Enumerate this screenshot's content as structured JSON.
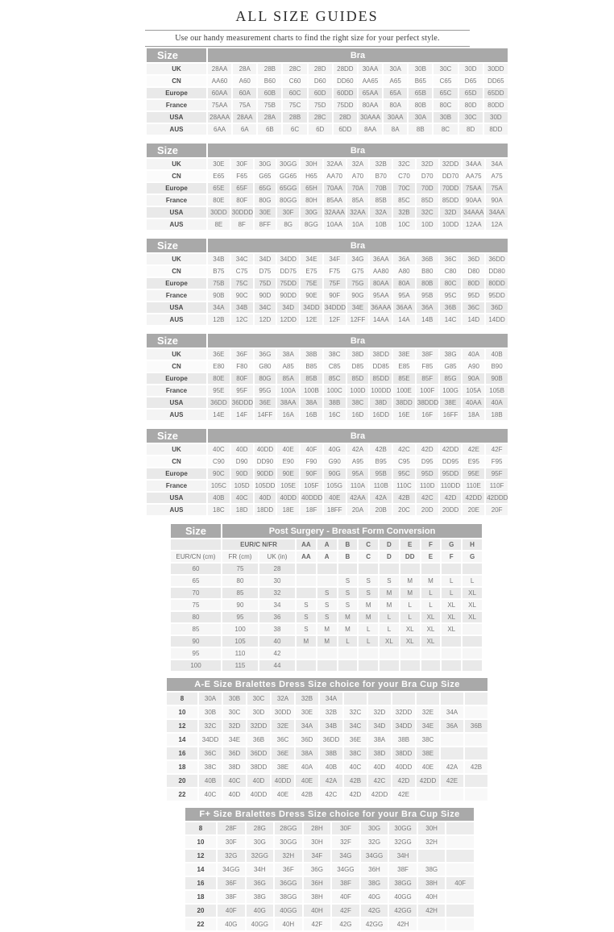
{
  "page": {
    "title": "ALL SIZE GUIDES",
    "subtitle": "Use our handy measurement charts to find the right size for your perfect style."
  },
  "bra_tables": [
    {
      "size_label": "Size",
      "bra_label": "Bra",
      "rows": [
        {
          "label": "UK",
          "values": [
            "28AA",
            "28A",
            "28B",
            "28C",
            "28D",
            "28DD",
            "30AA",
            "30A",
            "30B",
            "30C",
            "30D",
            "30DD"
          ]
        },
        {
          "label": "CN",
          "values": [
            "AA60",
            "A60",
            "B60",
            "C60",
            "D60",
            "DD60",
            "AA65",
            "A65",
            "B65",
            "C65",
            "D65",
            "DD65"
          ]
        },
        {
          "label": "Europe",
          "values": [
            "60AA",
            "60A",
            "60B",
            "60C",
            "60D",
            "60DD",
            "65AA",
            "65A",
            "65B",
            "65C",
            "65D",
            "65DD"
          ]
        },
        {
          "label": "France",
          "values": [
            "75AA",
            "75A",
            "75B",
            "75C",
            "75D",
            "75DD",
            "80AA",
            "80A",
            "80B",
            "80C",
            "80D",
            "80DD"
          ]
        },
        {
          "label": "USA",
          "values": [
            "28AAA",
            "28AA",
            "28A",
            "28B",
            "28C",
            "28D",
            "30AAA",
            "30AA",
            "30A",
            "30B",
            "30C",
            "30D"
          ]
        },
        {
          "label": "AUS",
          "values": [
            "6AA",
            "6A",
            "6B",
            "6C",
            "6D",
            "6DD",
            "8AA",
            "8A",
            "8B",
            "8C",
            "8D",
            "8DD"
          ]
        }
      ]
    },
    {
      "size_label": "Size",
      "bra_label": "Bra",
      "rows": [
        {
          "label": "UK",
          "values": [
            "30E",
            "30F",
            "30G",
            "30GG",
            "30H",
            "32AA",
            "32A",
            "32B",
            "32C",
            "32D",
            "32DD",
            "34AA",
            "34A"
          ]
        },
        {
          "label": "CN",
          "values": [
            "E65",
            "F65",
            "G65",
            "GG65",
            "H65",
            "AA70",
            "A70",
            "B70",
            "C70",
            "D70",
            "DD70",
            "AA75",
            "A75"
          ]
        },
        {
          "label": "Europe",
          "values": [
            "65E",
            "65F",
            "65G",
            "65GG",
            "65H",
            "70AA",
            "70A",
            "70B",
            "70C",
            "70D",
            "70DD",
            "75AA",
            "75A"
          ]
        },
        {
          "label": "France",
          "values": [
            "80E",
            "80F",
            "80G",
            "80GG",
            "80H",
            "85AA",
            "85A",
            "85B",
            "85C",
            "85D",
            "85DD",
            "90AA",
            "90A"
          ]
        },
        {
          "label": "USA",
          "values": [
            "30DD",
            "30DDD",
            "30E",
            "30F",
            "30G",
            "32AAA",
            "32AA",
            "32A",
            "32B",
            "32C",
            "32D",
            "34AAA",
            "34AA"
          ]
        },
        {
          "label": "AUS",
          "values": [
            "8E",
            "8F",
            "8FF",
            "8G",
            "8GG",
            "10AA",
            "10A",
            "10B",
            "10C",
            "10D",
            "10DD",
            "12AA",
            "12A"
          ]
        }
      ]
    },
    {
      "size_label": "Size",
      "bra_label": "Bra",
      "rows": [
        {
          "label": "UK",
          "values": [
            "34B",
            "34C",
            "34D",
            "34DD",
            "34E",
            "34F",
            "34G",
            "36AA",
            "36A",
            "36B",
            "36C",
            "36D",
            "36DD"
          ]
        },
        {
          "label": "CN",
          "values": [
            "B75",
            "C75",
            "D75",
            "DD75",
            "E75",
            "F75",
            "G75",
            "AA80",
            "A80",
            "B80",
            "C80",
            "D80",
            "DD80"
          ]
        },
        {
          "label": "Europe",
          "values": [
            "75B",
            "75C",
            "75D",
            "75DD",
            "75E",
            "75F",
            "75G",
            "80AA",
            "80A",
            "80B",
            "80C",
            "80D",
            "80DD"
          ]
        },
        {
          "label": "France",
          "values": [
            "90B",
            "90C",
            "90D",
            "90DD",
            "90E",
            "90F",
            "90G",
            "95AA",
            "95A",
            "95B",
            "95C",
            "95D",
            "95DD"
          ]
        },
        {
          "label": "USA",
          "values": [
            "34A",
            "34B",
            "34C",
            "34D",
            "34DD",
            "34DDD",
            "34E",
            "36AAA",
            "36AA",
            "36A",
            "36B",
            "36C",
            "36D"
          ]
        },
        {
          "label": "AUS",
          "values": [
            "12B",
            "12C",
            "12D",
            "12DD",
            "12E",
            "12F",
            "12FF",
            "14AA",
            "14A",
            "14B",
            "14C",
            "14D",
            "14DD"
          ]
        }
      ]
    },
    {
      "size_label": "Size",
      "bra_label": "Bra",
      "rows": [
        {
          "label": "UK",
          "values": [
            "36E",
            "36F",
            "36G",
            "38A",
            "38B",
            "38C",
            "38D",
            "38DD",
            "38E",
            "38F",
            "38G",
            "40A",
            "40B"
          ]
        },
        {
          "label": "CN",
          "values": [
            "E80",
            "F80",
            "G80",
            "A85",
            "B85",
            "C85",
            "D85",
            "DD85",
            "E85",
            "F85",
            "G85",
            "A90",
            "B90"
          ]
        },
        {
          "label": "Europe",
          "values": [
            "80E",
            "80F",
            "80G",
            "85A",
            "85B",
            "85C",
            "85D",
            "85DD",
            "85E",
            "85F",
            "85G",
            "90A",
            "90B"
          ]
        },
        {
          "label": "France",
          "values": [
            "95E",
            "95F",
            "95G",
            "100A",
            "100B",
            "100C",
            "100D",
            "100DD",
            "100E",
            "100F",
            "100G",
            "105A",
            "105B"
          ]
        },
        {
          "label": "USA",
          "values": [
            "36DD",
            "36DDD",
            "36E",
            "38AA",
            "38A",
            "38B",
            "38C",
            "38D",
            "38DD",
            "38DDD",
            "38E",
            "40AA",
            "40A"
          ]
        },
        {
          "label": "AUS",
          "values": [
            "14E",
            "14F",
            "14FF",
            "16A",
            "16B",
            "16C",
            "16D",
            "16DD",
            "16E",
            "16F",
            "16FF",
            "18A",
            "18B"
          ]
        }
      ]
    },
    {
      "size_label": "Size",
      "bra_label": "Bra",
      "rows": [
        {
          "label": "UK",
          "values": [
            "40C",
            "40D",
            "40DD",
            "40E",
            "40F",
            "40G",
            "42A",
            "42B",
            "42C",
            "42D",
            "42DD",
            "42E",
            "42F"
          ]
        },
        {
          "label": "CN",
          "values": [
            "C90",
            "D90",
            "DD90",
            "E90",
            "F90",
            "G90",
            "A95",
            "B95",
            "C95",
            "D95",
            "DD95",
            "E95",
            "F95"
          ]
        },
        {
          "label": "Europe",
          "values": [
            "90C",
            "90D",
            "90DD",
            "90E",
            "90F",
            "90G",
            "95A",
            "95B",
            "95C",
            "95D",
            "95DD",
            "95E",
            "95F"
          ]
        },
        {
          "label": "France",
          "values": [
            "105C",
            "105D",
            "105DD",
            "105E",
            "105F",
            "105G",
            "110A",
            "110B",
            "110C",
            "110D",
            "110DD",
            "110E",
            "110F"
          ]
        },
        {
          "label": "USA",
          "values": [
            "40B",
            "40C",
            "40D",
            "40DD",
            "40DDD",
            "40E",
            "42AA",
            "42A",
            "42B",
            "42C",
            "42D",
            "42DD",
            "42DDD"
          ]
        },
        {
          "label": "AUS",
          "values": [
            "18C",
            "18D",
            "18DD",
            "18E",
            "18F",
            "18FF",
            "20A",
            "20B",
            "20C",
            "20D",
            "20DD",
            "20E",
            "20F"
          ]
        }
      ]
    }
  ],
  "post_surgery": {
    "size_label": "Size",
    "title": "Post Surgery - Breast Form Conversion",
    "group_label": "EUR/C N/FR",
    "cups_top": [
      "AA",
      "A",
      "B",
      "C",
      "D",
      "E",
      "F",
      "G",
      "H"
    ],
    "unit_labels": [
      "EUR/CN (cm)",
      "FR (cm)",
      "UK (in)"
    ],
    "cups_bottom": [
      "AA",
      "A",
      "B",
      "C",
      "D",
      "DD",
      "E",
      "F",
      "G"
    ],
    "rows": [
      {
        "eur_cn": "60",
        "fr": "75",
        "uk": "28",
        "values": [
          "",
          "",
          "",
          "",
          "",
          "",
          "",
          "",
          ""
        ]
      },
      {
        "eur_cn": "65",
        "fr": "80",
        "uk": "30",
        "values": [
          "",
          "",
          "S",
          "S",
          "S",
          "M",
          "M",
          "L",
          "L"
        ]
      },
      {
        "eur_cn": "70",
        "fr": "85",
        "uk": "32",
        "values": [
          "",
          "S",
          "S",
          "S",
          "M",
          "M",
          "L",
          "L",
          "XL"
        ]
      },
      {
        "eur_cn": "75",
        "fr": "90",
        "uk": "34",
        "values": [
          "S",
          "S",
          "S",
          "M",
          "M",
          "L",
          "L",
          "XL",
          "XL"
        ]
      },
      {
        "eur_cn": "80",
        "fr": "95",
        "uk": "36",
        "values": [
          "S",
          "S",
          "M",
          "M",
          "L",
          "L",
          "XL",
          "XL",
          "XL"
        ]
      },
      {
        "eur_cn": "85",
        "fr": "100",
        "uk": "38",
        "values": [
          "S",
          "M",
          "M",
          "L",
          "L",
          "XL",
          "XL",
          "XL",
          ""
        ]
      },
      {
        "eur_cn": "90",
        "fr": "105",
        "uk": "40",
        "values": [
          "M",
          "M",
          "L",
          "L",
          "XL",
          "XL",
          "XL",
          "",
          ""
        ]
      },
      {
        "eur_cn": "95",
        "fr": "110",
        "uk": "42",
        "values": [
          "",
          "",
          "",
          "",
          "",
          "",
          "",
          "",
          ""
        ]
      },
      {
        "eur_cn": "100",
        "fr": "115",
        "uk": "44",
        "values": [
          "",
          "",
          "",
          "",
          "",
          "",
          "",
          "",
          ""
        ]
      }
    ]
  },
  "bralettes_ae": {
    "title": "A-E Size Bralettes Dress Size choice for your Bra Cup Size",
    "column_count": 12,
    "rows": [
      {
        "dress": "8",
        "values": [
          "30A",
          "30B",
          "30C",
          "32A",
          "32B",
          "34A"
        ]
      },
      {
        "dress": "10",
        "values": [
          "30B",
          "30C",
          "30D",
          "30DD",
          "30E",
          "32B",
          "32C",
          "32D",
          "32DD",
          "32E",
          "34A"
        ]
      },
      {
        "dress": "12",
        "values": [
          "32C",
          "32D",
          "32DD",
          "32E",
          "34A",
          "34B",
          "34C",
          "34D",
          "34DD",
          "34E",
          "36A",
          "36B"
        ]
      },
      {
        "dress": "14",
        "values": [
          "34DD",
          "34E",
          "36B",
          "36C",
          "36D",
          "36DD",
          "36E",
          "38A",
          "38B",
          "38C"
        ]
      },
      {
        "dress": "16",
        "values": [
          "36C",
          "36D",
          "36DD",
          "36E",
          "38A",
          "38B",
          "38C",
          "38D",
          "38DD",
          "38E"
        ]
      },
      {
        "dress": "18",
        "values": [
          "38C",
          "38D",
          "38DD",
          "38E",
          "40A",
          "40B",
          "40C",
          "40D",
          "40DD",
          "40E",
          "42A",
          "42B"
        ]
      },
      {
        "dress": "20",
        "values": [
          "40B",
          "40C",
          "40D",
          "40DD",
          "40E",
          "42A",
          "42B",
          "42C",
          "42D",
          "42DD",
          "42E"
        ]
      },
      {
        "dress": "22",
        "values": [
          "40C",
          "40D",
          "40DD",
          "40E",
          "42B",
          "42C",
          "42D",
          "42DD",
          "42E"
        ]
      }
    ]
  },
  "bralettes_fplus": {
    "title": "F+ Size Bralettes Dress Size choice for your Bra Cup Size",
    "column_count": 9,
    "rows": [
      {
        "dress": "8",
        "values": [
          "28F",
          "28G",
          "28GG",
          "28H",
          "30F",
          "30G",
          "30GG",
          "30H"
        ]
      },
      {
        "dress": "10",
        "values": [
          "30F",
          "30G",
          "30GG",
          "30H",
          "32F",
          "32G",
          "32GG",
          "32H"
        ]
      },
      {
        "dress": "12",
        "values": [
          "32G",
          "32GG",
          "32H",
          "34F",
          "34G",
          "34GG",
          "34H"
        ]
      },
      {
        "dress": "14",
        "values": [
          "34GG",
          "34H",
          "36F",
          "36G",
          "34GG",
          "36H",
          "38F",
          "38G"
        ]
      },
      {
        "dress": "16",
        "values": [
          "36F",
          "36G",
          "36GG",
          "36H",
          "38F",
          "38G",
          "38GG",
          "38H",
          "40F"
        ]
      },
      {
        "dress": "18",
        "values": [
          "38F",
          "38G",
          "38GG",
          "38H",
          "40F",
          "40G",
          "40GG",
          "40H"
        ]
      },
      {
        "dress": "20",
        "values": [
          "40F",
          "40G",
          "40GG",
          "40H",
          "42F",
          "42G",
          "42GG",
          "42H"
        ]
      },
      {
        "dress": "22",
        "values": [
          "40G",
          "40GG",
          "40H",
          "42F",
          "42G",
          "42GG",
          "42H"
        ]
      }
    ]
  }
}
